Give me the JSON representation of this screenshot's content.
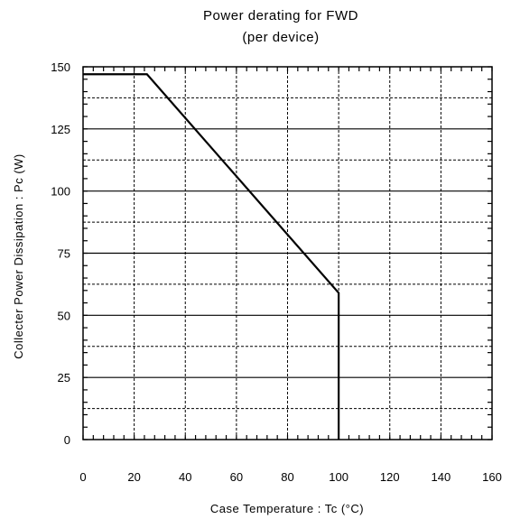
{
  "chart_data": {
    "type": "line",
    "title": "Power derating for FWD",
    "subtitle": "(per device)",
    "xlabel": "Case Temperature : Tc (°C)",
    "ylabel": "Collecter Power Dissipation : Pc (W)",
    "xlim": [
      0,
      160
    ],
    "ylim": [
      0,
      150
    ],
    "x_ticks": [
      0,
      20,
      40,
      60,
      80,
      100,
      120,
      140,
      160
    ],
    "y_ticks": [
      0,
      25,
      50,
      75,
      100,
      125,
      150
    ],
    "x_tick_labels": [
      "0",
      "20",
      "40",
      "60",
      "80",
      "100",
      "120",
      "140",
      "160"
    ],
    "y_tick_labels": [
      "0",
      "25",
      "50",
      "75",
      "100",
      "125",
      "150"
    ],
    "x_minor_step": 4,
    "y_minor_step": 5,
    "grid": {
      "major_y_every": 25,
      "half_y_every": 12.5,
      "vertical_every": 20,
      "major_style": "solid",
      "half_style": "dashed",
      "vertical_style": "dashed"
    },
    "series": [
      {
        "x": [
          0,
          25,
          100,
          100
        ],
        "y": [
          147,
          147,
          59,
          0
        ],
        "color": "#000000"
      }
    ]
  }
}
